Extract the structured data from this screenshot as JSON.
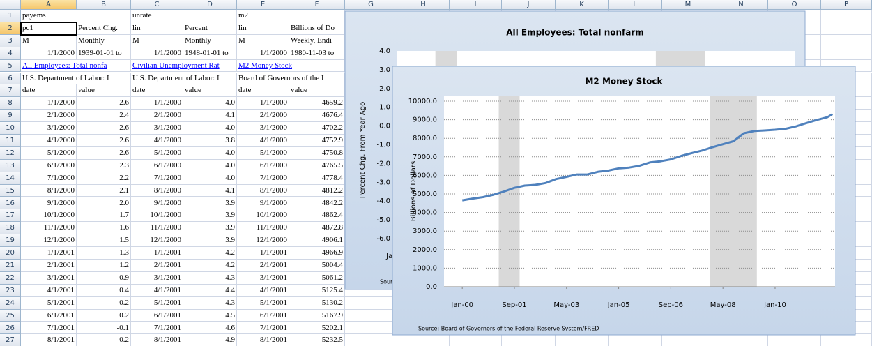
{
  "spreadsheet": {
    "column_headers": [
      "A",
      "B",
      "C",
      "D",
      "E",
      "F",
      "G",
      "H",
      "I",
      "J",
      "K",
      "L",
      "M",
      "N",
      "O",
      "P"
    ],
    "row_headers": [
      "1",
      "2",
      "3",
      "4",
      "5",
      "6",
      "7",
      "8",
      "9",
      "10",
      "11",
      "12",
      "13",
      "14",
      "15",
      "16",
      "17",
      "18",
      "19",
      "20",
      "21",
      "22",
      "23",
      "24",
      "25",
      "26",
      "27"
    ],
    "rows": [
      [
        "payems",
        null,
        "unrate",
        null,
        "m2",
        null
      ],
      [
        "pc1",
        "Percent Chg.",
        "lin",
        "Percent",
        "lin",
        "Billions of Do"
      ],
      [
        "M",
        "Monthly",
        "M",
        "Monthly",
        "M",
        "Weekly, Endi"
      ],
      [
        "1/1/2000",
        "1939-01-01 to",
        "1/1/2000",
        "1948-01-01 to",
        "1/1/2000",
        "1980-11-03 to"
      ],
      [
        "All Employees: Total nonfa",
        null,
        "Civilian Unemployment Rat",
        null,
        "M2 Money Stock",
        null
      ],
      [
        "U.S. Department of Labor: I",
        null,
        "U.S. Department of Labor: I",
        null,
        "Board of Governors of the I",
        null
      ],
      [
        "date",
        "value",
        "date",
        "value",
        "date",
        "value"
      ],
      [
        "1/1/2000",
        "2.6",
        "1/1/2000",
        "4.0",
        "1/1/2000",
        "4659.2"
      ],
      [
        "2/1/2000",
        "2.4",
        "2/1/2000",
        "4.1",
        "2/1/2000",
        "4676.4"
      ],
      [
        "3/1/2000",
        "2.6",
        "3/1/2000",
        "4.0",
        "3/1/2000",
        "4702.2"
      ],
      [
        "4/1/2000",
        "2.6",
        "4/1/2000",
        "3.8",
        "4/1/2000",
        "4752.9"
      ],
      [
        "5/1/2000",
        "2.6",
        "5/1/2000",
        "4.0",
        "5/1/2000",
        "4750.8"
      ],
      [
        "6/1/2000",
        "2.3",
        "6/1/2000",
        "4.0",
        "6/1/2000",
        "4765.5"
      ],
      [
        "7/1/2000",
        "2.2",
        "7/1/2000",
        "4.0",
        "7/1/2000",
        "4778.4"
      ],
      [
        "8/1/2000",
        "2.1",
        "8/1/2000",
        "4.1",
        "8/1/2000",
        "4812.2"
      ],
      [
        "9/1/2000",
        "2.0",
        "9/1/2000",
        "3.9",
        "9/1/2000",
        "4842.2"
      ],
      [
        "10/1/2000",
        "1.7",
        "10/1/2000",
        "3.9",
        "10/1/2000",
        "4862.4"
      ],
      [
        "11/1/2000",
        "1.6",
        "11/1/2000",
        "3.9",
        "11/1/2000",
        "4872.8"
      ],
      [
        "12/1/2000",
        "1.5",
        "12/1/2000",
        "3.9",
        "12/1/2000",
        "4906.1"
      ],
      [
        "1/1/2001",
        "1.3",
        "1/1/2001",
        "4.2",
        "1/1/2001",
        "4966.9"
      ],
      [
        "2/1/2001",
        "1.2",
        "2/1/2001",
        "4.2",
        "2/1/2001",
        "5004.4"
      ],
      [
        "3/1/2001",
        "0.9",
        "3/1/2001",
        "4.3",
        "3/1/2001",
        "5061.2"
      ],
      [
        "4/1/2001",
        "0.4",
        "4/1/2001",
        "4.4",
        "4/1/2001",
        "5125.4"
      ],
      [
        "5/1/2001",
        "0.2",
        "5/1/2001",
        "4.3",
        "5/1/2001",
        "5130.2"
      ],
      [
        "6/1/2001",
        "0.2",
        "6/1/2001",
        "4.5",
        "6/1/2001",
        "5167.9"
      ],
      [
        "7/1/2001",
        "-0.1",
        "7/1/2001",
        "4.6",
        "7/1/2001",
        "5202.1"
      ],
      [
        "8/1/2001",
        "-0.2",
        "8/1/2001",
        "4.9",
        "8/1/2001",
        "5232.5"
      ]
    ]
  },
  "charts": [
    {
      "type": "line",
      "title": "All Employees: Total nonfarm",
      "y_label": "Percent Chg. From Year Ago",
      "ylim": [
        -6,
        4
      ],
      "yticks": [
        {
          "value": 4,
          "label": "4.0"
        },
        {
          "value": 3,
          "label": "3.0"
        },
        {
          "value": 2,
          "label": "2.0"
        },
        {
          "value": 1,
          "label": "1.0"
        },
        {
          "value": 0,
          "label": "0.0"
        },
        {
          "value": -1,
          "label": "-1.0"
        },
        {
          "value": -2,
          "label": "-2.0"
        },
        {
          "value": -3,
          "label": "-3.0"
        },
        {
          "value": -4,
          "label": "-4.0"
        },
        {
          "value": -5,
          "label": "-5.0"
        },
        {
          "value": -6,
          "label": "-6.0"
        }
      ],
      "xlim": [
        "2000-01",
        "2012-03"
      ],
      "xticks": [
        {
          "value": "2000-01",
          "label": "Jan-00"
        }
      ],
      "grid": false,
      "shaded_periods": [
        {
          "start": "2001-03",
          "end": "2001-11"
        },
        {
          "start": "2007-12",
          "end": "2009-06"
        }
      ],
      "source": "Source"
    },
    {
      "type": "line",
      "title": "M2 Money Stock",
      "y_label": "Billions of Dollars",
      "ylim": [
        0,
        10000
      ],
      "yticks": [
        {
          "value": 0,
          "label": "0.0"
        },
        {
          "value": 1000,
          "label": "1000.0"
        },
        {
          "value": 2000,
          "label": "2000.0"
        },
        {
          "value": 3000,
          "label": "3000.0"
        },
        {
          "value": 4000,
          "label": "4000.0"
        },
        {
          "value": 5000,
          "label": "5000.0"
        },
        {
          "value": 6000,
          "label": "6000.0"
        },
        {
          "value": 7000,
          "label": "7000.0"
        },
        {
          "value": 8000,
          "label": "8000.0"
        },
        {
          "value": 9000,
          "label": "9000.0"
        },
        {
          "value": 10000,
          "label": "10000.0"
        }
      ],
      "xlim": [
        "1999-06",
        "2011-12"
      ],
      "xticks": [
        {
          "value": "2000-01",
          "label": "Jan-00"
        },
        {
          "value": "2001-09",
          "label": "Sep-01"
        },
        {
          "value": "2003-05",
          "label": "May-03"
        },
        {
          "value": "2005-01",
          "label": "Jan-05"
        },
        {
          "value": "2006-09",
          "label": "Sep-06"
        },
        {
          "value": "2008-05",
          "label": "May-08"
        },
        {
          "value": "2010-01",
          "label": "Jan-10"
        }
      ],
      "grid": true,
      "shaded_periods": [
        {
          "start": "2001-03",
          "end": "2001-11"
        },
        {
          "start": "2007-12",
          "end": "2009-06"
        }
      ],
      "x": [
        "2000-01",
        "2000-05",
        "2000-09",
        "2001-01",
        "2001-05",
        "2001-09",
        "2002-01",
        "2002-05",
        "2002-09",
        "2003-01",
        "2003-05",
        "2003-09",
        "2004-01",
        "2004-05",
        "2004-09",
        "2005-01",
        "2005-05",
        "2005-09",
        "2006-01",
        "2006-05",
        "2006-09",
        "2007-01",
        "2007-05",
        "2007-09",
        "2008-01",
        "2008-05",
        "2008-09",
        "2009-01",
        "2009-05",
        "2009-09",
        "2010-01",
        "2010-05",
        "2010-09",
        "2011-01",
        "2011-05",
        "2011-09",
        "2011-11"
      ],
      "series": [
        {
          "color": "#4f81bd",
          "values": [
            4659,
            4750,
            4830,
            4960,
            5130,
            5330,
            5450,
            5490,
            5590,
            5800,
            5920,
            6050,
            6050,
            6190,
            6260,
            6380,
            6420,
            6520,
            6700,
            6760,
            6860,
            7050,
            7200,
            7340,
            7520,
            7680,
            7840,
            8270,
            8390,
            8420,
            8460,
            8510,
            8640,
            8820,
            8990,
            9130,
            9300
          ]
        }
      ],
      "source": "Source: Board of Governors of the Federal Reserve System/FRED"
    }
  ]
}
